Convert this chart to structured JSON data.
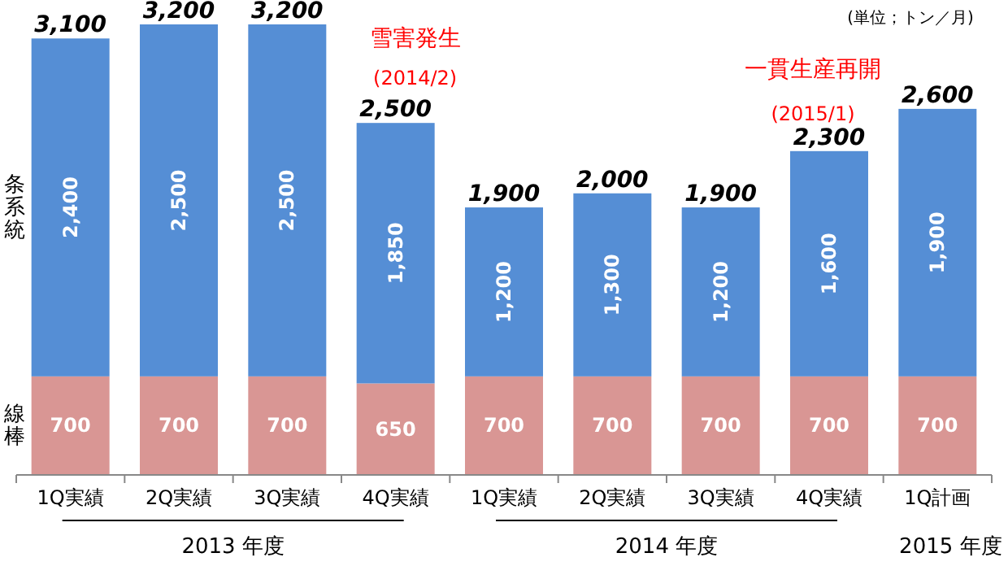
{
  "chart_data": {
    "type": "bar",
    "stacked": true,
    "categories": [
      "1Q実績",
      "2Q実績",
      "3Q実績",
      "4Q実績",
      "1Q実績",
      "2Q実績",
      "3Q実績",
      "4Q実績",
      "1Q計画"
    ],
    "series": [
      {
        "name": "線棒",
        "color": "#d99694",
        "values": [
          700,
          700,
          700,
          650,
          700,
          700,
          700,
          700,
          700
        ],
        "value_labels": [
          "700",
          "700",
          "700",
          "650",
          "700",
          "700",
          "700",
          "700",
          "700"
        ]
      },
      {
        "name": "条系統",
        "color": "#558ed5",
        "values": [
          2400,
          2500,
          2500,
          1850,
          1200,
          1300,
          1200,
          1600,
          1900
        ],
        "value_labels": [
          "2,400",
          "2,500",
          "2,500",
          "1,850",
          "1,200",
          "1,300",
          "1,200",
          "1,600",
          "1,900"
        ]
      }
    ],
    "totals": [
      "3,100",
      "3,200",
      "3,200",
      "2,500",
      "1,900",
      "2,000",
      "1,900",
      "2,300",
      "2,600"
    ],
    "annotations": [
      "(単位；トン／月)",
      "雪害発生",
      "(2014/2)",
      "一貫生産再開",
      "(2015/1)",
      "2013 年度",
      "2014 年度",
      "2015 年度"
    ]
  }
}
